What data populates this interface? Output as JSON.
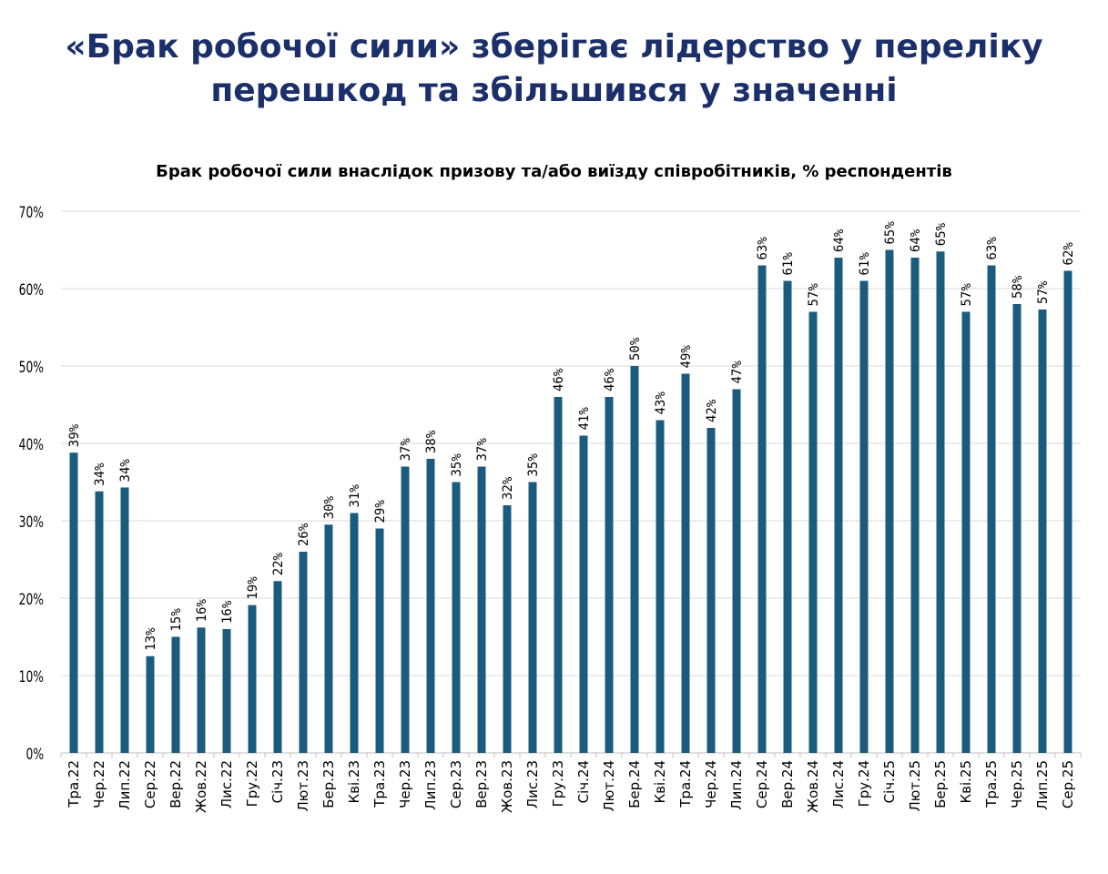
{
  "slide": {
    "title_line1": "«Брак робочої сили» зберігає лідерство у переліку",
    "title_line2": "перешкод та збільшився у значенні"
  },
  "colors": {
    "bar": "#1a5b7e",
    "title": "#1b2f6b",
    "grid": "#d9d9d9"
  },
  "chart_data": {
    "type": "bar",
    "title": "Брак робочої сили внаслідок призову та/або виїзду співробітників, % респондентів",
    "xlabel": "",
    "ylabel": "",
    "ylim": [
      0,
      70
    ],
    "yticks": [
      "0%",
      "10%",
      "20%",
      "30%",
      "40%",
      "50%",
      "60%",
      "70%"
    ],
    "grid": true,
    "categories": [
      "Тра.22",
      "Чер.22",
      "Лип.22",
      "Сер.22",
      "Вер.22",
      "Жов.22",
      "Лис.22",
      "Гру.22",
      "Січ.23",
      "Лют.23",
      "Бер.23",
      "Кві.23",
      "Тра.23",
      "Чер.23",
      "Лип.23",
      "Сер.23",
      "Вер.23",
      "Жов.23",
      "Лис.23",
      "Гру.23",
      "Січ.24",
      "Лют.24",
      "Бер.24",
      "Кві.24",
      "Тра.24",
      "Чер.24",
      "Лип.24",
      "Сер.24",
      "Вер.24",
      "Жов.24",
      "Лис.24",
      "Гру.24",
      "Січ.25",
      "Лют.25",
      "Бер.25",
      "Кві.25",
      "Тра.25",
      "Чер.25",
      "Лип.25",
      "Сер.25"
    ],
    "values": [
      38.8,
      33.8,
      34.3,
      12.5,
      15.0,
      16.2,
      16.0,
      19.1,
      22.2,
      26.0,
      29.5,
      31.0,
      29.0,
      37.0,
      38.0,
      35.0,
      37.0,
      32.0,
      35.0,
      46.0,
      41.0,
      46.0,
      50.0,
      43.0,
      49.0,
      42.0,
      47.0,
      63.0,
      61.0,
      57.0,
      64.0,
      61.0,
      65.0,
      64.0,
      64.8,
      57.0,
      63.0,
      58.0,
      57.3,
      62.3
    ],
    "labels": [
      "39%",
      "34%",
      "34%",
      "13%",
      "15%",
      "16%",
      "16%",
      "19%",
      "22%",
      "26%",
      "30%",
      "31%",
      "29%",
      "37%",
      "38%",
      "35%",
      "37%",
      "32%",
      "35%",
      "46%",
      "41%",
      "46%",
      "50%",
      "43%",
      "49%",
      "42%",
      "47%",
      "63%",
      "61%",
      "57%",
      "64%",
      "61%",
      "65%",
      "64%",
      "65%",
      "57%",
      "63%",
      "58%",
      "57%",
      "62%"
    ]
  }
}
